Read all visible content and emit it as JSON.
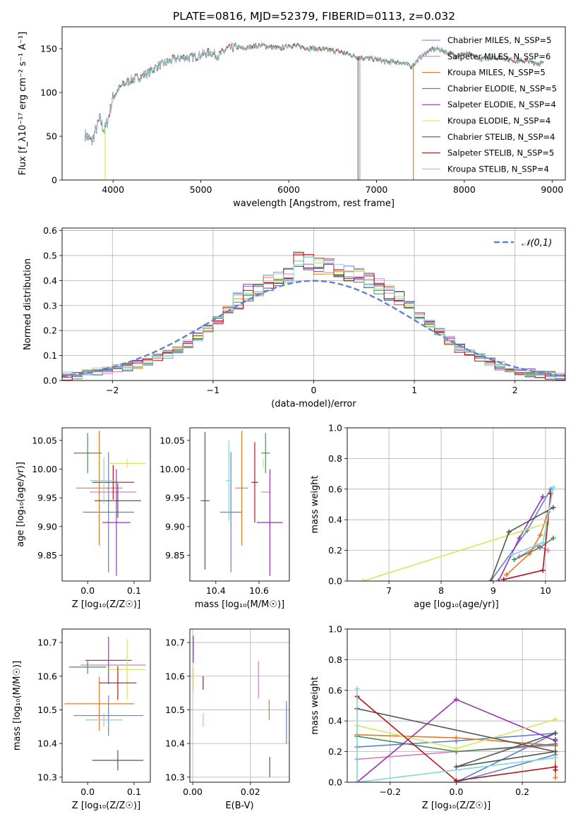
{
  "colors": [
    "#5b82d6",
    "#d67fbf",
    "#e07b28",
    "#4f8a5a",
    "#9a32b5",
    "#d4e85a",
    "#555555",
    "#b3151a",
    "#7fd8dc"
  ],
  "title": "PLATE=0816, MJD=52379, FIBERID=0113, z=0.032",
  "chart_data": [
    {
      "id": "spectrum",
      "type": "line",
      "xlabel": "wavelength [Angstrom, rest frame]",
      "ylabel": "Flux [f_λ10⁻¹⁷ erg cm⁻² s⁻¹ A⁻¹]",
      "xlim": [
        3420,
        9150
      ],
      "ylim": [
        0,
        175
      ],
      "xticks": [
        4000,
        5000,
        6000,
        7000,
        8000,
        9000
      ],
      "yticks": [
        0,
        50,
        100,
        150
      ],
      "grid": false,
      "legend_position": "top-right",
      "legend": [
        "Chabrier MILES, N_SSP=5",
        "Salpeter MILES, N_SSP=6",
        "Kroupa MILES, N_SSP=5",
        "Chabrier ELODIE, N_SSP=5",
        "Salpeter ELODIE, N_SSP=4",
        "Kroupa ELODIE, N_SSP=4",
        "Chabrier STELIB, N_SSP=4",
        "Salpeter STELIB, N_SSP=5",
        "Kroupa STELIB, N_SSP=4"
      ],
      "continuum": [
        [
          3680,
          52
        ],
        [
          3760,
          44
        ],
        [
          3850,
          70
        ],
        [
          3900,
          56
        ],
        [
          3950,
          72
        ],
        [
          4000,
          95
        ],
        [
          4100,
          108
        ],
        [
          4200,
          114
        ],
        [
          4300,
          118
        ],
        [
          4400,
          122
        ],
        [
          4500,
          130
        ],
        [
          4600,
          134
        ],
        [
          4700,
          138
        ],
        [
          4800,
          140
        ],
        [
          4900,
          140
        ],
        [
          5000,
          143
        ],
        [
          5100,
          146
        ],
        [
          5200,
          142
        ],
        [
          5300,
          150
        ],
        [
          5400,
          152
        ],
        [
          5500,
          150
        ],
        [
          5600,
          153
        ],
        [
          5700,
          154
        ],
        [
          5800,
          152
        ],
        [
          5900,
          150
        ],
        [
          6000,
          154
        ],
        [
          6100,
          153
        ],
        [
          6200,
          151
        ],
        [
          6300,
          150
        ],
        [
          6400,
          149
        ],
        [
          6500,
          148
        ],
        [
          6600,
          146
        ],
        [
          6700,
          143
        ],
        [
          6800,
          140
        ],
        [
          6900,
          139
        ],
        [
          7000,
          138
        ],
        [
          7100,
          135
        ],
        [
          7200,
          135
        ],
        [
          7300,
          134
        ],
        [
          7400,
          130
        ],
        [
          7500,
          140
        ],
        [
          7600,
          148
        ],
        [
          7700,
          150
        ],
        [
          7800,
          146
        ],
        [
          7900,
          142
        ],
        [
          8000,
          144
        ],
        [
          8100,
          142
        ],
        [
          8200,
          138
        ],
        [
          8300,
          140
        ],
        [
          8400,
          140
        ],
        [
          8500,
          138
        ],
        [
          8600,
          136
        ],
        [
          8700,
          136
        ],
        [
          8800,
          134
        ],
        [
          8900,
          133
        ]
      ],
      "drops": [
        {
          "series": 5,
          "x": 3910,
          "ybottom": 0
        },
        {
          "series": 3,
          "x": 6790,
          "ybottom": 0
        },
        {
          "series": 1,
          "x": 6810,
          "ybottom": 0
        },
        {
          "series": 2,
          "x": 7420,
          "ybottom": 0
        }
      ]
    },
    {
      "id": "residuals",
      "type": "histogram",
      "xlabel": "(data-model)/error",
      "ylabel": "Normed distribution",
      "xlim": [
        -2.5,
        2.5
      ],
      "ylim": [
        0,
        0.61
      ],
      "xticks": [
        -2,
        -1,
        0,
        1,
        2
      ],
      "yticks": [
        0.0,
        0.1,
        0.2,
        0.3,
        0.4,
        0.5,
        0.6
      ],
      "grid": true,
      "legend_position": "top-right",
      "reference_curve": {
        "name": "𝒩(0,1)",
        "mu": 0,
        "sigma": 1
      },
      "bin_edges": [
        -2.5,
        -2.4,
        -2.3,
        -2.2,
        -2.1,
        -2.0,
        -1.9,
        -1.8,
        -1.7,
        -1.6,
        -1.5,
        -1.4,
        -1.3,
        -1.2,
        -1.1,
        -1.0,
        -0.9,
        -0.8,
        -0.7,
        -0.6,
        -0.5,
        -0.4,
        -0.3,
        -0.2,
        -0.1,
        0.0,
        0.1,
        0.2,
        0.3,
        0.4,
        0.5,
        0.6,
        0.7,
        0.8,
        0.9,
        1.0,
        1.1,
        1.2,
        1.3,
        1.4,
        1.5,
        1.6,
        1.7,
        1.8,
        1.9,
        2.0,
        2.1,
        2.2,
        2.3,
        2.4,
        2.5
      ],
      "base_density": [
        0.018,
        0.022,
        0.027,
        0.033,
        0.04,
        0.047,
        0.055,
        0.065,
        0.077,
        0.09,
        0.105,
        0.125,
        0.148,
        0.175,
        0.205,
        0.24,
        0.28,
        0.32,
        0.35,
        0.37,
        0.39,
        0.405,
        0.42,
        0.49,
        0.47,
        0.46,
        0.455,
        0.44,
        0.43,
        0.42,
        0.405,
        0.38,
        0.35,
        0.33,
        0.3,
        0.265,
        0.23,
        0.195,
        0.16,
        0.13,
        0.11,
        0.09,
        0.075,
        0.06,
        0.048,
        0.038,
        0.03,
        0.025,
        0.02,
        0.016
      ]
    },
    {
      "id": "age-vs-Z",
      "type": "errorbar",
      "xlabel": "Z [log₁₀(Z/Z☉)]",
      "ylabel": "age  [log₁₀(age/yr)]",
      "xlim": [
        -0.055,
        0.135
      ],
      "ylim": [
        9.805,
        10.072
      ],
      "xticks": [
        0.0,
        0.1
      ],
      "yticks": [
        9.85,
        9.9,
        9.95,
        10.0,
        10.05
      ],
      "grid": false,
      "points": [
        {
          "x": 0.045,
          "y": 9.925,
          "xerr": 0.055,
          "yerr": 0.105,
          "series": 0
        },
        {
          "x": 0.055,
          "y": 9.96,
          "xerr": 0.05,
          "yerr": 0.0,
          "series": 1
        },
        {
          "x": 0.025,
          "y": 9.967,
          "xerr": 0.05,
          "yerr": 0.1,
          "series": 2
        },
        {
          "x": 0.0,
          "y": 10.028,
          "xerr": 0.03,
          "yerr": 0.035,
          "series": 3
        },
        {
          "x": 0.062,
          "y": 9.907,
          "xerr": 0.03,
          "yerr": 0.093,
          "series": 4
        },
        {
          "x": 0.085,
          "y": 10.01,
          "xerr": 0.04,
          "yerr": 0.008,
          "series": 5
        },
        {
          "x": 0.065,
          "y": 9.945,
          "xerr": 0.05,
          "yerr": 0.03,
          "series": 6
        },
        {
          "x": 0.055,
          "y": 9.977,
          "xerr": 0.045,
          "yerr": 0.03,
          "series": 7
        },
        {
          "x": 0.035,
          "y": 9.98,
          "xerr": 0.03,
          "yerr": 0.04,
          "series": 8
        }
      ]
    },
    {
      "id": "age-vs-mass",
      "type": "errorbar",
      "xlabel": "mass [log₁₀(M/M☉)]",
      "ylabel": "",
      "xlim": [
        10.28,
        10.74
      ],
      "ylim": [
        9.805,
        10.072
      ],
      "xticks": [
        10.4,
        10.6
      ],
      "yticks": [
        9.85,
        9.9,
        9.95,
        10.0,
        10.05
      ],
      "grid": false,
      "points": [
        {
          "x": 10.47,
          "y": 9.925,
          "xerr": 0.05,
          "yerr": 0.105,
          "series": 0
        },
        {
          "x": 10.63,
          "y": 9.96,
          "xerr": 0.02,
          "yerr": 0.0,
          "series": 1
        },
        {
          "x": 10.52,
          "y": 9.967,
          "xerr": 0.03,
          "yerr": 0.1,
          "series": 2
        },
        {
          "x": 10.63,
          "y": 10.028,
          "xerr": 0.02,
          "yerr": 0.035,
          "series": 3
        },
        {
          "x": 10.65,
          "y": 9.907,
          "xerr": 0.06,
          "yerr": 0.093,
          "series": 4
        },
        {
          "x": 10.62,
          "y": 10.01,
          "xerr": 0.0,
          "yerr": 0.008,
          "series": 5
        },
        {
          "x": 10.35,
          "y": 9.945,
          "xerr": 0.02,
          "yerr": 0.12,
          "series": 6
        },
        {
          "x": 10.58,
          "y": 9.977,
          "xerr": 0.015,
          "yerr": 0.07,
          "series": 7
        },
        {
          "x": 10.46,
          "y": 9.98,
          "xerr": 0.015,
          "yerr": 0.07,
          "series": 8
        }
      ]
    },
    {
      "id": "weight-vs-age",
      "type": "line",
      "xlabel": "age  [log₁₀(age/yr)]",
      "ylabel": "mass weight",
      "xlim": [
        6.2,
        10.38
      ],
      "ylim": [
        0,
        1.0
      ],
      "xticks": [
        7,
        8,
        9,
        10
      ],
      "yticks": [
        0.0,
        0.2,
        0.4,
        0.6,
        0.8,
        1.0
      ],
      "grid": true,
      "series": [
        {
          "series": 0,
          "x": [
            8.95,
            9.65,
            10.1
          ],
          "y": [
            0.0,
            0.33,
            0.6
          ]
        },
        {
          "series": 1,
          "x": [
            9.5,
            9.85,
            10.05
          ],
          "y": [
            0.16,
            0.23,
            0.2
          ]
        },
        {
          "series": 2,
          "x": [
            9.25,
            9.7,
            9.9,
            10.05
          ],
          "y": [
            0.04,
            0.18,
            0.3,
            0.45
          ]
        },
        {
          "series": 3,
          "x": [
            9.4,
            9.9,
            10.15
          ],
          "y": [
            0.14,
            0.22,
            0.28
          ]
        },
        {
          "series": 4,
          "x": [
            9.1,
            9.5,
            9.95
          ],
          "y": [
            0.0,
            0.28,
            0.55
          ]
        },
        {
          "series": 5,
          "x": [
            6.5,
            10.05
          ],
          "y": [
            0.0,
            0.38
          ]
        },
        {
          "series": 6,
          "x": [
            8.95,
            9.3,
            10.15
          ],
          "y": [
            0.0,
            0.32,
            0.48
          ]
        },
        {
          "series": 7,
          "x": [
            9.2,
            9.95,
            10.1
          ],
          "y": [
            0.01,
            0.07,
            0.57
          ]
        },
        {
          "series": 8,
          "x": [
            9.35,
            9.95,
            10.15
          ],
          "y": [
            0.17,
            0.25,
            0.61
          ]
        }
      ]
    },
    {
      "id": "mass-vs-Z",
      "type": "errorbar",
      "xlabel": "Z [log₁₀(Z/Z☉)]",
      "ylabel": "mass [log₁₀(M/M☉)]",
      "xlim": [
        -0.055,
        0.135
      ],
      "ylim": [
        10.285,
        10.74
      ],
      "xticks": [
        0.0,
        0.1
      ],
      "yticks": [
        10.3,
        10.4,
        10.5,
        10.6,
        10.7
      ],
      "grid": false,
      "points": [
        {
          "x": 0.045,
          "y": 10.483,
          "xerr": 0.075,
          "yerr": 0.06,
          "series": 0
        },
        {
          "x": 0.055,
          "y": 10.633,
          "xerr": 0.07,
          "yerr": 0.0,
          "series": 1
        },
        {
          "x": 0.025,
          "y": 10.518,
          "xerr": 0.075,
          "yerr": 0.08,
          "series": 2
        },
        {
          "x": 0.0,
          "y": 10.627,
          "xerr": 0.04,
          "yerr": 0.02,
          "series": 3
        },
        {
          "x": 0.045,
          "y": 10.647,
          "xerr": 0.05,
          "yerr": 0.07,
          "series": 4
        },
        {
          "x": 0.085,
          "y": 10.62,
          "xerr": 0.04,
          "yerr": 0.09,
          "series": 5
        },
        {
          "x": 0.065,
          "y": 10.35,
          "xerr": 0.055,
          "yerr": 0.03,
          "series": 6
        },
        {
          "x": 0.065,
          "y": 10.58,
          "xerr": 0.04,
          "yerr": 0.05,
          "series": 7
        },
        {
          "x": 0.035,
          "y": 10.47,
          "xerr": 0.04,
          "yerr": 0.02,
          "series": 8
        }
      ]
    },
    {
      "id": "mass-vs-ebv",
      "type": "errorbar",
      "xlabel": "E(B-V)",
      "ylabel": "",
      "xlim": [
        -0.001,
        0.0335
      ],
      "ylim": [
        10.285,
        10.74
      ],
      "xticks": [
        0.0,
        0.02
      ],
      "yticks": [
        10.3,
        10.4,
        10.5,
        10.6,
        10.7
      ],
      "grid": true,
      "points": [
        {
          "x": 0.0325,
          "y": 10.463,
          "xerr": 0,
          "yerr": 0.063,
          "series": 0
        },
        {
          "x": 0.0228,
          "y": 10.59,
          "xerr": 0,
          "yerr": 0.055,
          "series": 1
        },
        {
          "x": 0.0265,
          "y": 10.5,
          "xerr": 0,
          "yerr": 0.03,
          "series": 2
        },
        {
          "x": 0.0002,
          "y": 10.68,
          "xerr": 0,
          "yerr": 0.015,
          "series": 3
        },
        {
          "x": 0.0002,
          "y": 10.68,
          "xerr": 0,
          "yerr": 0.04,
          "series": 4
        },
        {
          "x": 0.0002,
          "y": 10.59,
          "xerr": 0,
          "yerr": 0.035,
          "series": 5
        },
        {
          "x": 0.0267,
          "y": 10.33,
          "xerr": 0,
          "yerr": 0.03,
          "series": 6
        },
        {
          "x": 0.0036,
          "y": 10.58,
          "xerr": 0,
          "yerr": 0.02,
          "series": 7
        },
        {
          "x": 0.0036,
          "y": 10.47,
          "xerr": 0,
          "yerr": 0.02,
          "series": 8
        }
      ]
    },
    {
      "id": "weight-vs-Z",
      "type": "line",
      "xlabel": "Z [log₁₀(Z/Z☉)]",
      "ylabel": "mass weight",
      "xlim": [
        -0.33,
        0.33
      ],
      "ylim": [
        0,
        1.0
      ],
      "xticks": [
        -0.2,
        0.0,
        0.2
      ],
      "yticks": [
        0.0,
        0.2,
        0.4,
        0.6,
        0.8,
        1.0
      ],
      "grid": true,
      "series": [
        {
          "series": 0,
          "x": [
            -0.3,
            0.0,
            0.3,
            0.0,
            0.3
          ],
          "y": [
            0.23,
            0.27,
            0.32,
            0.0,
            0.18
          ]
        },
        {
          "series": 1,
          "x": [
            -0.3,
            0.0,
            0.3
          ],
          "y": [
            0.15,
            0.2,
            0.24
          ]
        },
        {
          "series": 2,
          "x": [
            -0.3,
            0.0,
            0.3,
            0.3
          ],
          "y": [
            0.31,
            0.29,
            0.24,
            0.03
          ]
        },
        {
          "series": 3,
          "x": [
            -0.3,
            0.0,
            0.3,
            0.3
          ],
          "y": [
            0.3,
            0.2,
            0.25,
            0.28
          ]
        },
        {
          "series": 4,
          "x": [
            -0.3,
            0.0,
            0.3
          ],
          "y": [
            0.0,
            0.54,
            0.27
          ]
        },
        {
          "series": 5,
          "x": [
            -0.3,
            0.0,
            0.3
          ],
          "y": [
            0.37,
            0.22,
            0.41
          ]
        },
        {
          "series": 6,
          "x": [
            -0.3,
            0.3,
            0.0,
            0.3
          ],
          "y": [
            0.48,
            0.2,
            0.1,
            0.32
          ]
        },
        {
          "series": 7,
          "x": [
            -0.3,
            0.0,
            0.3,
            0.3
          ],
          "y": [
            0.56,
            0.01,
            0.1,
            0.08
          ]
        },
        {
          "series": 8,
          "x": [
            -0.3,
            -0.3,
            0.3
          ],
          "y": [
            0.61,
            0.0,
            0.16
          ]
        }
      ]
    }
  ]
}
